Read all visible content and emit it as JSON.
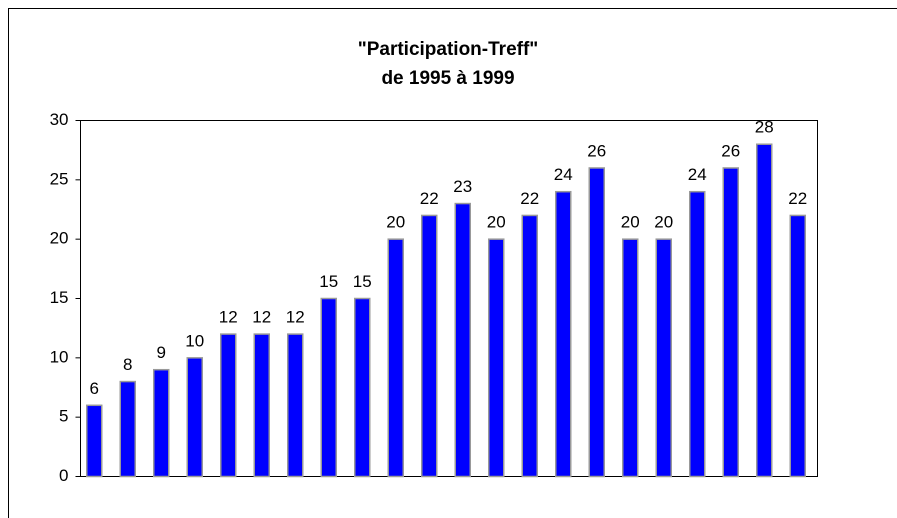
{
  "chart_data": {
    "type": "bar",
    "title": "\"Participation-Treff\"",
    "subtitle": "de 1995 à 1999",
    "categories": [
      null,
      null,
      null,
      null,
      null,
      null,
      null,
      null,
      null,
      null,
      null,
      null,
      null,
      null,
      null,
      null,
      null,
      null,
      null,
      null,
      null,
      null
    ],
    "values": [
      6,
      8,
      9,
      10,
      12,
      12,
      12,
      15,
      15,
      20,
      22,
      23,
      20,
      22,
      24,
      26,
      20,
      20,
      24,
      26,
      28,
      22
    ],
    "color": "#0000ff",
    "ylim": [
      0,
      30
    ],
    "yticks": [
      0,
      5,
      10,
      15,
      20,
      25,
      30
    ],
    "grid": false
  }
}
